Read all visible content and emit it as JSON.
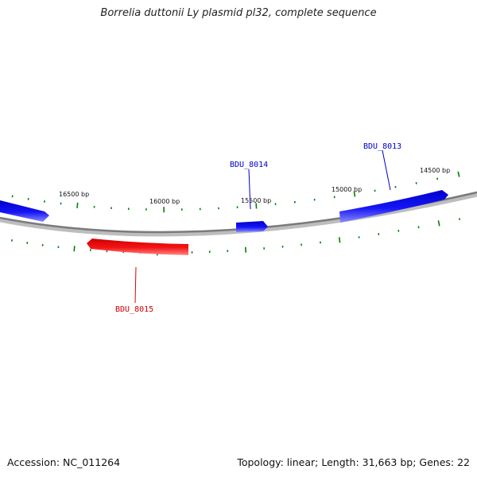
{
  "title": "Borrelia duttonii Ly plasmid pl32, complete sequence",
  "footer": {
    "accession": "Accession: NC_011264",
    "summary": "Topology: linear; Length: 31,663 bp; Genes: 22"
  },
  "scale_labels": [
    "16500 bp",
    "16000 bp",
    "15500 bp",
    "15000 bp",
    "14500 bp"
  ],
  "colors": {
    "forward": "#1010ee",
    "reverse": "#ee1010",
    "backbone": "#808080",
    "tick": "#008000"
  },
  "genes": [
    {
      "label": "BDU_8015",
      "strand": "reverse"
    },
    {
      "label": "BDU_8014",
      "strand": "forward"
    },
    {
      "label": "BDU_8013",
      "strand": "forward"
    }
  ]
}
